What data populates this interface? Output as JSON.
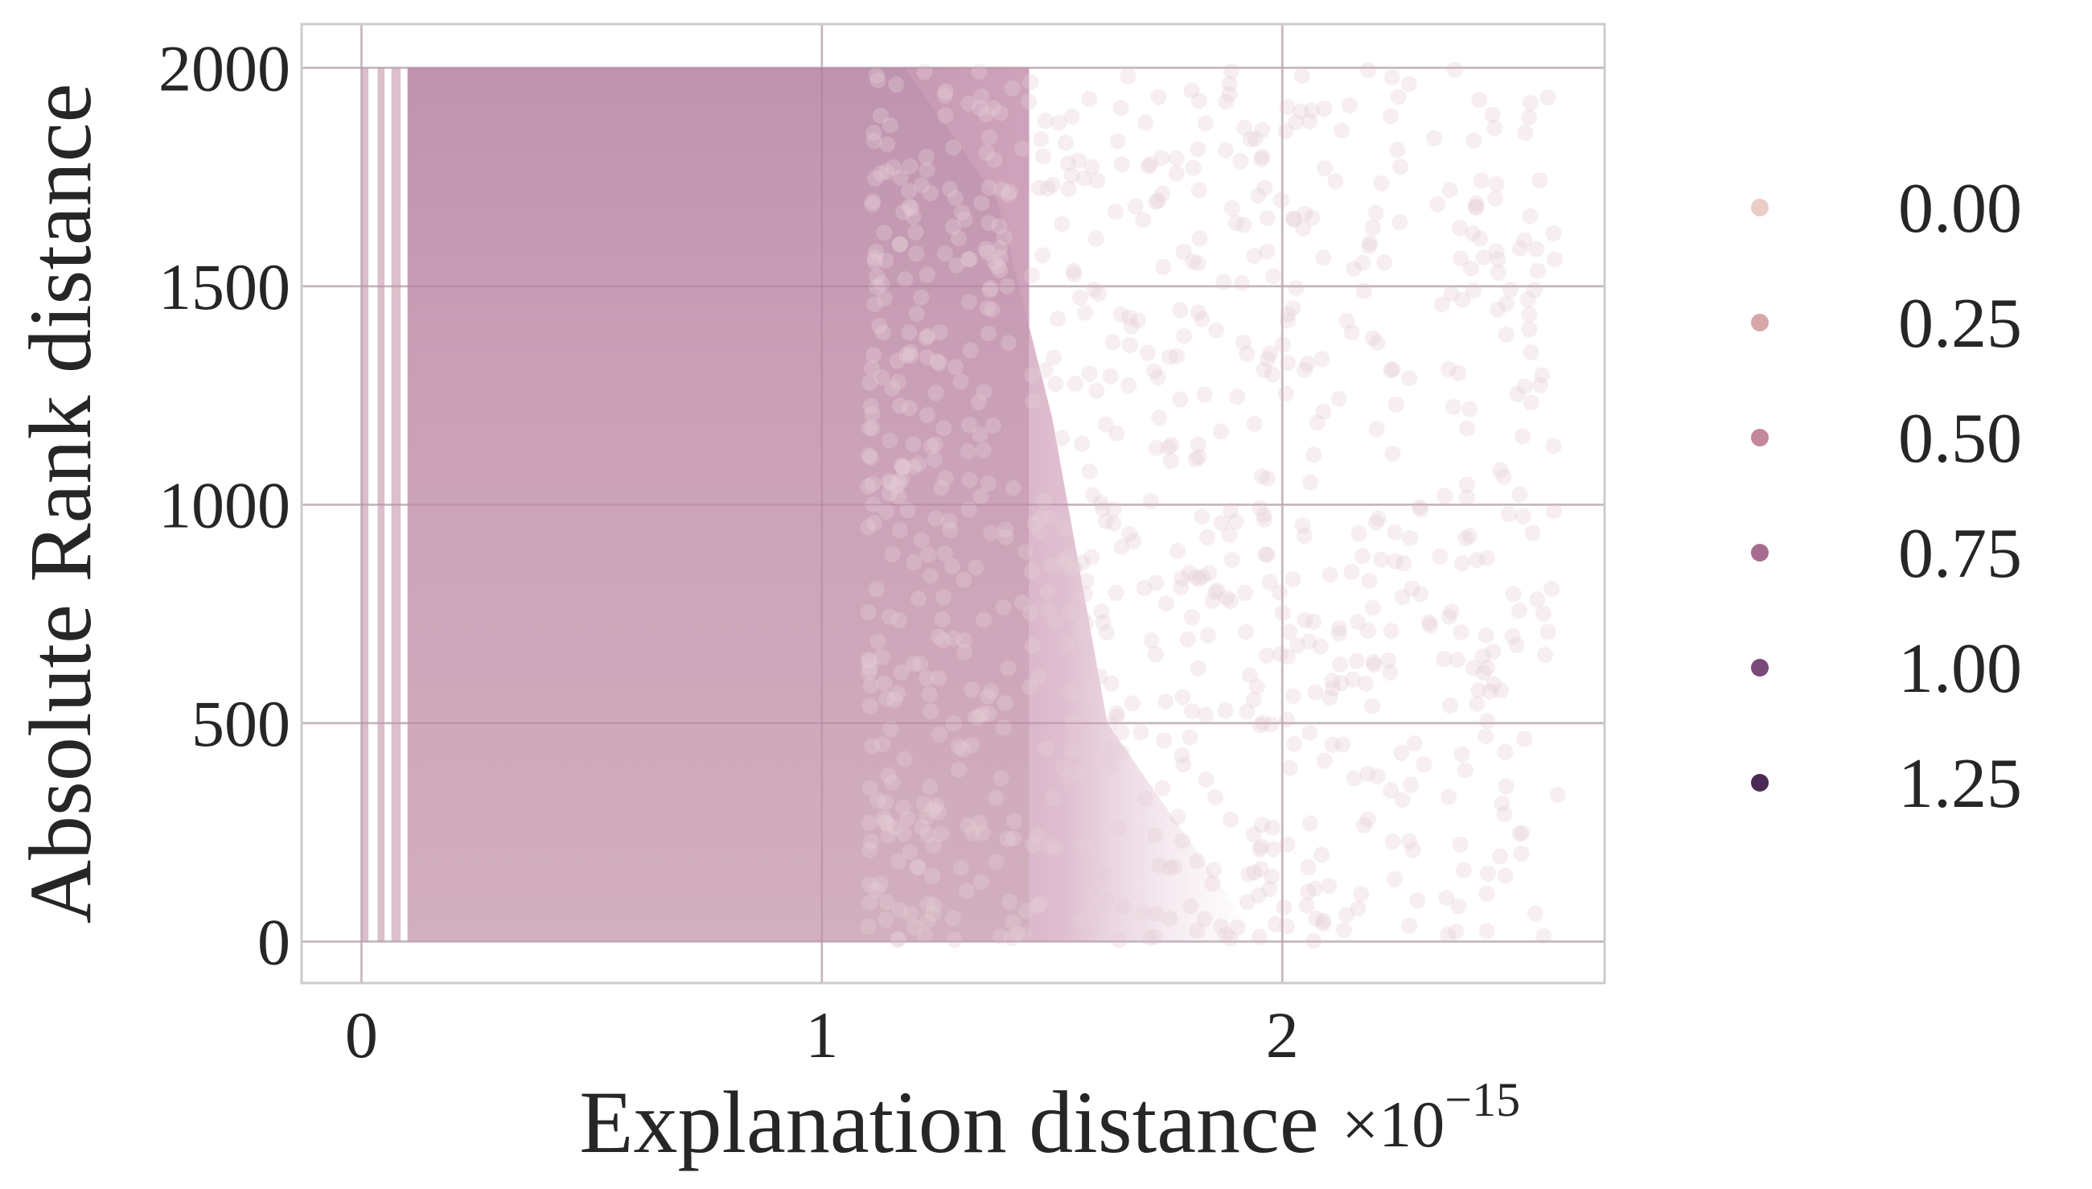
{
  "chart_data": {
    "type": "scatter",
    "xlabel": "Explanation distance",
    "ylabel": "Absolute Rank distance",
    "x_offset_text": "×10",
    "x_offset_exponent": "−15",
    "xlim": [
      -0.13,
      2.7
    ],
    "ylim": [
      -95,
      2100
    ],
    "x_ticks": [
      0,
      1,
      2
    ],
    "x_tick_labels": [
      "0",
      "1",
      "2"
    ],
    "y_ticks": [
      0,
      500,
      1000,
      1500,
      2000
    ],
    "y_tick_labels": [
      "0",
      "500",
      "1000",
      "1500",
      "2000"
    ],
    "grid": true,
    "legend_position": "outside-right",
    "legend": [
      {
        "label": "0.00",
        "color": "#ebcdc6"
      },
      {
        "label": "0.25",
        "color": "#d7a6a7"
      },
      {
        "label": "0.50",
        "color": "#c3879a"
      },
      {
        "label": "0.75",
        "color": "#a66b8e"
      },
      {
        "label": "1.00",
        "color": "#7a4a7a"
      },
      {
        "label": "1.25",
        "color": "#4a2a55"
      }
    ],
    "point_cloud": {
      "x_range": [
        0,
        2.6
      ],
      "y_range": [
        0,
        2000
      ],
      "dense_core_x": [
        0.1,
        1.45
      ],
      "core_color": "#cfa9b8",
      "top_band_color": "#b98aa8",
      "fringe_color": "#e6cdd8"
    }
  }
}
